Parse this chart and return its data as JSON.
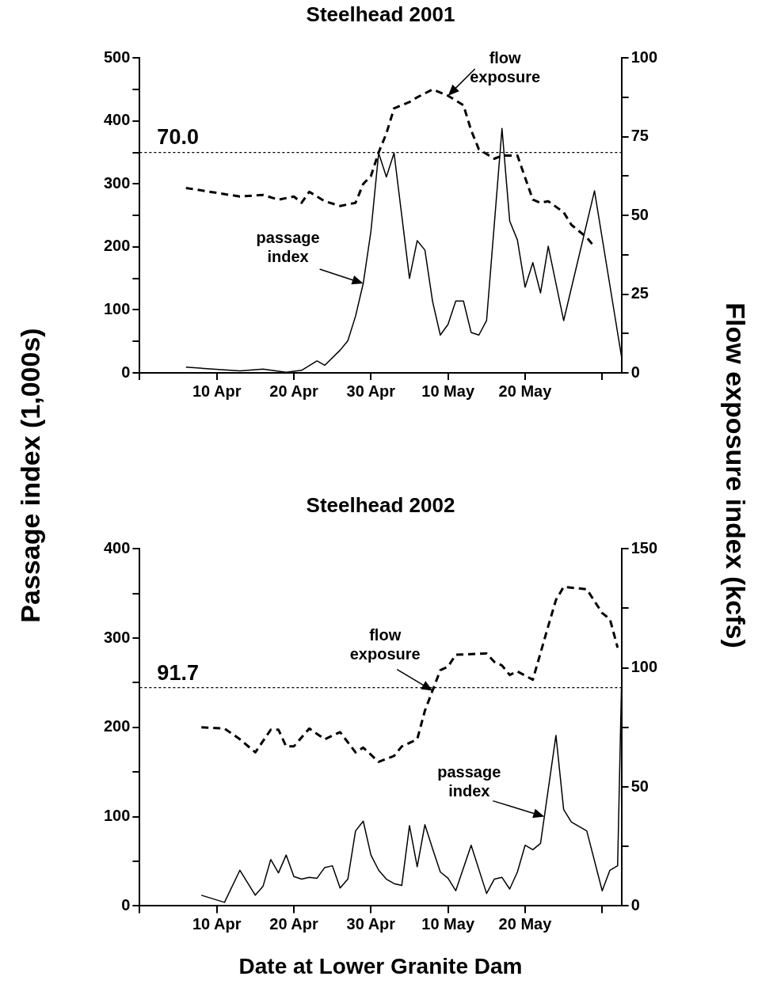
{
  "chart_data": [
    {
      "type": "line",
      "title": "Steelhead 2001",
      "ylabel": "Passage index (1,000s)",
      "y2label": "Flow exposure index (kcfs)",
      "xlim": [
        "2001-03-31",
        "2001-06-01T12:00"
      ],
      "xticks": [
        {
          "value": "2001-03-31",
          "label": null
        },
        {
          "value": "2001-04-10",
          "label": "10 Apr"
        },
        {
          "value": "2001-04-20",
          "label": "20 Apr"
        },
        {
          "value": "2001-04-30",
          "label": "30 Apr"
        },
        {
          "value": "2001-05-10",
          "label": "10 May"
        },
        {
          "value": "2001-05-20",
          "label": "20 May"
        },
        {
          "value": "2001-05-30",
          "label": null
        }
      ],
      "ylim": [
        0,
        500
      ],
      "yticks": [
        0,
        {
          "value": 50,
          "label": null
        },
        100,
        {
          "value": 150,
          "label": null
        },
        200,
        {
          "value": 250,
          "label": null
        },
        300,
        {
          "value": 350,
          "label": null
        },
        400,
        {
          "value": 450,
          "label": null
        },
        500
      ],
      "y2lim": [
        0,
        100
      ],
      "y2ticks": [
        0,
        {
          "value": 12.5,
          "label": null
        },
        25,
        {
          "value": 37.5,
          "label": null
        },
        50,
        {
          "value": 62.5,
          "label": null
        },
        75,
        {
          "value": 87.5,
          "label": null
        },
        100
      ],
      "grid": false,
      "legend": false,
      "marker": "none",
      "series": [
        {
          "color": "#000000",
          "line_style": "solid",
          "x": [
            "2001-04-06",
            "2001-04-13",
            "2001-04-16",
            "2001-04-19",
            "2001-04-21",
            "2001-04-23",
            "2001-04-24",
            "2001-04-26",
            "2001-04-27",
            "2001-04-28",
            "2001-04-29",
            "2001-04-30",
            "2001-05-01",
            "2001-05-02",
            "2001-05-03",
            "2001-05-05",
            "2001-05-06",
            "2001-05-07",
            "2001-05-08",
            "2001-05-09",
            "2001-05-10",
            "2001-05-11",
            "2001-05-12",
            "2001-05-13",
            "2001-05-14",
            "2001-05-15",
            "2001-05-17",
            "2001-05-18",
            "2001-05-19",
            "2001-05-20",
            "2001-05-21",
            "2001-05-22",
            "2001-05-23",
            "2001-05-25",
            "2001-05-29",
            "2001-06-01T12:00"
          ],
          "values": [
            9,
            3,
            6,
            1,
            4,
            19,
            12,
            36,
            51,
            90,
            142,
            225,
            349,
            311,
            349,
            150,
            210,
            195,
            113,
            60,
            77,
            114,
            114,
            64,
            60,
            83,
            388,
            241,
            211,
            136,
            175,
            127,
            201,
            83,
            289,
            26
          ]
        },
        {
          "color": "#000000",
          "line_style": "dashed",
          "axis": "y2",
          "x": [
            "2001-04-06",
            "2001-04-13",
            "2001-04-16",
            "2001-04-18",
            "2001-04-20",
            "2001-04-21",
            "2001-04-22",
            "2001-04-24",
            "2001-04-26",
            "2001-04-28",
            "2001-04-29",
            "2001-04-30",
            "2001-05-01",
            "2001-05-02",
            "2001-05-03",
            "2001-05-05",
            "2001-05-06",
            "2001-05-08",
            "2001-05-10",
            "2001-05-12",
            "2001-05-13",
            "2001-05-14",
            "2001-05-16",
            "2001-05-17",
            "2001-05-19",
            "2001-05-21",
            "2001-05-22",
            "2001-05-23",
            "2001-05-25",
            "2001-05-26",
            "2001-05-28",
            "2001-05-29"
          ],
          "values": [
            58.7,
            56,
            56.5,
            55,
            56,
            54,
            57.5,
            54.5,
            53,
            54,
            60,
            62.5,
            70,
            76,
            84,
            86,
            87.5,
            90,
            88,
            85,
            77,
            71,
            68,
            69,
            69,
            55,
            54,
            54.5,
            51,
            47,
            43,
            40
          ]
        }
      ],
      "ref_lines": [
        {
          "axis": "y2",
          "value": 70,
          "label": "70.0",
          "line_style": "dotted",
          "color": "#000000"
        }
      ],
      "annotations": [
        {
          "text": "flow exposure",
          "x": "2001-05-10",
          "y": 440
        },
        {
          "text": "passage index",
          "x": "2001-04-29",
          "y": 142
        }
      ]
    },
    {
      "type": "line",
      "title": "Steelhead 2002",
      "xlabel": "Date at Lower Granite Dam",
      "xlim": [
        "2002-03-31",
        "2002-06-01T12:00"
      ],
      "xticks": [
        {
          "value": "2002-03-31",
          "label": null
        },
        {
          "value": "2002-04-10",
          "label": "10 Apr"
        },
        {
          "value": "2002-04-20",
          "label": "20 Apr"
        },
        {
          "value": "2002-04-30",
          "label": "30 Apr"
        },
        {
          "value": "2002-05-10",
          "label": "10 May"
        },
        {
          "value": "2002-05-20",
          "label": "20 May"
        },
        {
          "value": "2002-05-30",
          "label": null
        }
      ],
      "ylim": [
        0,
        400
      ],
      "yticks": [
        0,
        {
          "value": 50,
          "label": null
        },
        100,
        {
          "value": 150,
          "label": null
        },
        200,
        {
          "value": 250,
          "label": null
        },
        300,
        {
          "value": 350,
          "label": null
        },
        400
      ],
      "y2lim": [
        0,
        150
      ],
      "y2ticks": [
        0,
        {
          "value": 25,
          "label": null
        },
        50,
        {
          "value": 75,
          "label": null
        },
        100,
        {
          "value": 125,
          "label": null
        },
        150
      ],
      "grid": false,
      "legend": false,
      "marker": "none",
      "series": [
        {
          "color": "#000000",
          "line_style": "solid",
          "x": [
            "2002-04-08",
            "2002-04-11",
            "2002-04-13",
            "2002-04-15",
            "2002-04-16",
            "2002-04-17",
            "2002-04-18",
            "2002-04-19",
            "2002-04-20",
            "2002-04-21",
            "2002-04-22",
            "2002-04-23",
            "2002-04-24",
            "2002-04-25",
            "2002-04-26",
            "2002-04-27",
            "2002-04-28",
            "2002-04-29",
            "2002-04-30",
            "2002-05-01",
            "2002-05-02",
            "2002-05-03",
            "2002-05-04",
            "2002-05-05",
            "2002-05-06",
            "2002-05-07",
            "2002-05-08",
            "2002-05-09",
            "2002-05-10",
            "2002-05-11",
            "2002-05-13",
            "2002-05-15",
            "2002-05-16",
            "2002-05-17",
            "2002-05-18",
            "2002-05-19",
            "2002-05-20",
            "2002-05-21",
            "2002-05-22",
            "2002-05-24",
            "2002-05-25",
            "2002-05-26",
            "2002-05-28",
            "2002-05-30",
            "2002-05-31",
            "2002-06-01",
            "2002-06-01T12:00"
          ],
          "values": [
            12,
            4,
            40,
            12,
            22,
            52,
            37,
            57,
            33,
            30,
            32,
            31,
            43,
            45,
            20,
            30,
            84,
            95,
            57,
            40,
            30,
            25,
            23,
            90,
            44,
            91,
            64,
            38,
            31,
            17,
            68,
            14,
            30,
            32,
            19,
            38,
            68,
            63,
            70,
            191,
            108,
            94,
            84,
            17,
            40,
            45,
            246
          ]
        },
        {
          "color": "#000000",
          "line_style": "dashed",
          "axis": "y2",
          "x": [
            "2002-04-08",
            "2002-04-11",
            "2002-04-13",
            "2002-04-15",
            "2002-04-17",
            "2002-04-18",
            "2002-04-19",
            "2002-04-20",
            "2002-04-22",
            "2002-04-24",
            "2002-04-26",
            "2002-04-28",
            "2002-04-29",
            "2002-05-01",
            "2002-05-03",
            "2002-05-04",
            "2002-05-06",
            "2002-05-07",
            "2002-05-09",
            "2002-05-10",
            "2002-05-11",
            "2002-05-15",
            "2002-05-16",
            "2002-05-17",
            "2002-05-18",
            "2002-05-19",
            "2002-05-21",
            "2002-05-23",
            "2002-05-24",
            "2002-05-25",
            "2002-05-28",
            "2002-05-30",
            "2002-05-31",
            "2002-06-01"
          ],
          "values": [
            75,
            74.5,
            70,
            64.5,
            74,
            74,
            67,
            67,
            74.5,
            70,
            73,
            64.5,
            66.5,
            60.5,
            63,
            67,
            70,
            82,
            99,
            100.5,
            105.5,
            106,
            102.5,
            101,
            97,
            98.5,
            95,
            117.5,
            128.5,
            134,
            133,
            123,
            120.5,
            108.5
          ]
        }
      ],
      "ref_lines": [
        {
          "axis": "y2",
          "value": 91.7,
          "label": "91.7",
          "line_style": "dotted",
          "color": "#000000"
        }
      ],
      "annotations": [
        {
          "text": "flow exposure",
          "x": "2002-05-08",
          "y": 241
        },
        {
          "text": "passage index",
          "x": "2002-05-22T12:00",
          "y": 100
        }
      ]
    }
  ]
}
